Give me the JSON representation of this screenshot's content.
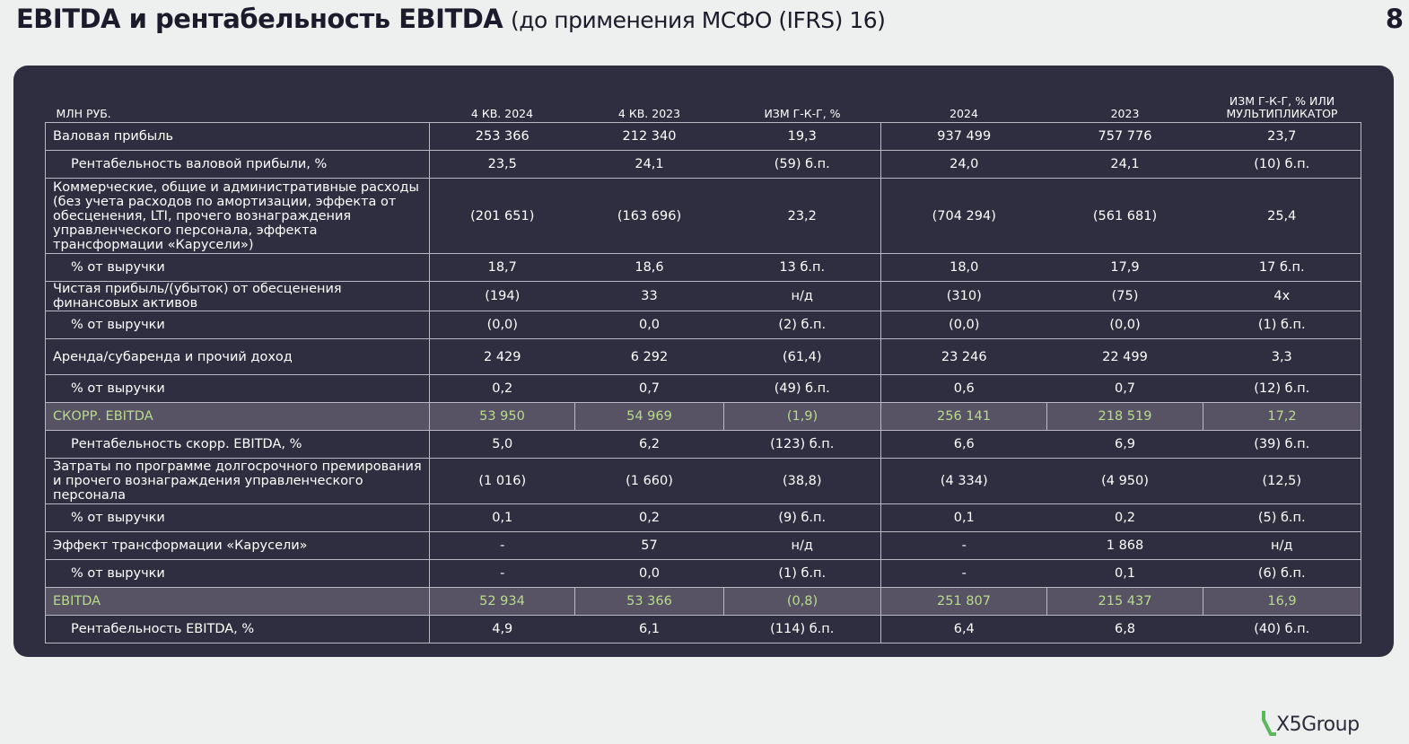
{
  "header": {
    "title": "EBITDA и рентабельность EBITDA",
    "subtitle": "(до применения МСФО (IFRS) 16)",
    "page_number": "8"
  },
  "table": {
    "columns": [
      "МЛН РУБ.",
      "4 КВ. 2024",
      "4 КВ. 2023",
      "ИЗМ Г-К-Г, %",
      "2024",
      "2023",
      "ИЗМ Г-К-Г, % ИЛИ МУЛЬТИПЛИКАТОР"
    ],
    "rows": [
      [
        "Валовая прибыль",
        "253 366",
        "212 340",
        "19,3",
        "937 499",
        "757 776",
        "23,7"
      ],
      [
        "Рентабельность валовой прибыли, %",
        "23,5",
        "24,1",
        "(59) б.п.",
        "24,0",
        "24,1",
        "(10) б.п."
      ],
      [
        "Коммерческие, общие и административные расходы (без учета расходов по амортизации, эффекта от обесценения, LTI, прочего вознаграждения управленческого персонала, эффекта трансформации «Карусели»)",
        "(201 651)",
        "(163 696)",
        "23,2",
        "(704 294)",
        "(561 681)",
        "25,4"
      ],
      [
        "% от выручки",
        "18,7",
        "18,6",
        "13 б.п.",
        "18,0",
        "17,9",
        "17 б.п."
      ],
      [
        "Чистая прибыль/(убыток) от обесценения финансовых активов",
        "(194)",
        "33",
        "н/д",
        "(310)",
        "(75)",
        "4x"
      ],
      [
        "% от выручки",
        "(0,0)",
        "0,0",
        "(2) б.п.",
        "(0,0)",
        "(0,0)",
        "(1) б.п."
      ],
      [
        "Аренда/субаренда и прочий доход",
        "2 429",
        "6 292",
        "(61,4)",
        "23 246",
        "22 499",
        "3,3"
      ],
      [
        "% от выручки",
        "0,2",
        "0,7",
        "(49) б.п.",
        "0,6",
        "0,7",
        "(12) б.п."
      ],
      [
        "СКОРР. EBITDA",
        "53 950",
        "54 969",
        "(1,9)",
        "256 141",
        "218 519",
        "17,2"
      ],
      [
        "Рентабельность скорр. EBITDA, %",
        "5,0",
        "6,2",
        "(123) б.п.",
        "6,6",
        "6,9",
        "(39) б.п."
      ],
      [
        "Затраты по программе долгосрочного премирования и прочего вознаграждения управленческого персонала",
        "(1 016)",
        "(1 660)",
        "(38,8)",
        "(4 334)",
        "(4 950)",
        "(12,5)"
      ],
      [
        "% от выручки",
        "0,1",
        "0,2",
        "(9) б.п.",
        "0,1",
        "0,2",
        "(5) б.п."
      ],
      [
        "Эффект трансформации «Карусели»",
        "-",
        "57",
        "н/д",
        "-",
        "1 868",
        "н/д"
      ],
      [
        "% от выручки",
        "-",
        "0,0",
        "(1) б.п.",
        "-",
        "0,1",
        "(6) б.п."
      ],
      [
        "EBITDA",
        "52 934",
        "53 366",
        "(0,8)",
        "251 807",
        "215 437",
        "16,9"
      ],
      [
        "Рентабельность EBITDA, %",
        "4,9",
        "6,1",
        "(114) б.п.",
        "6,4",
        "6,8",
        "(40) б.п."
      ]
    ]
  },
  "footer": {
    "logo": "X5Group"
  }
}
